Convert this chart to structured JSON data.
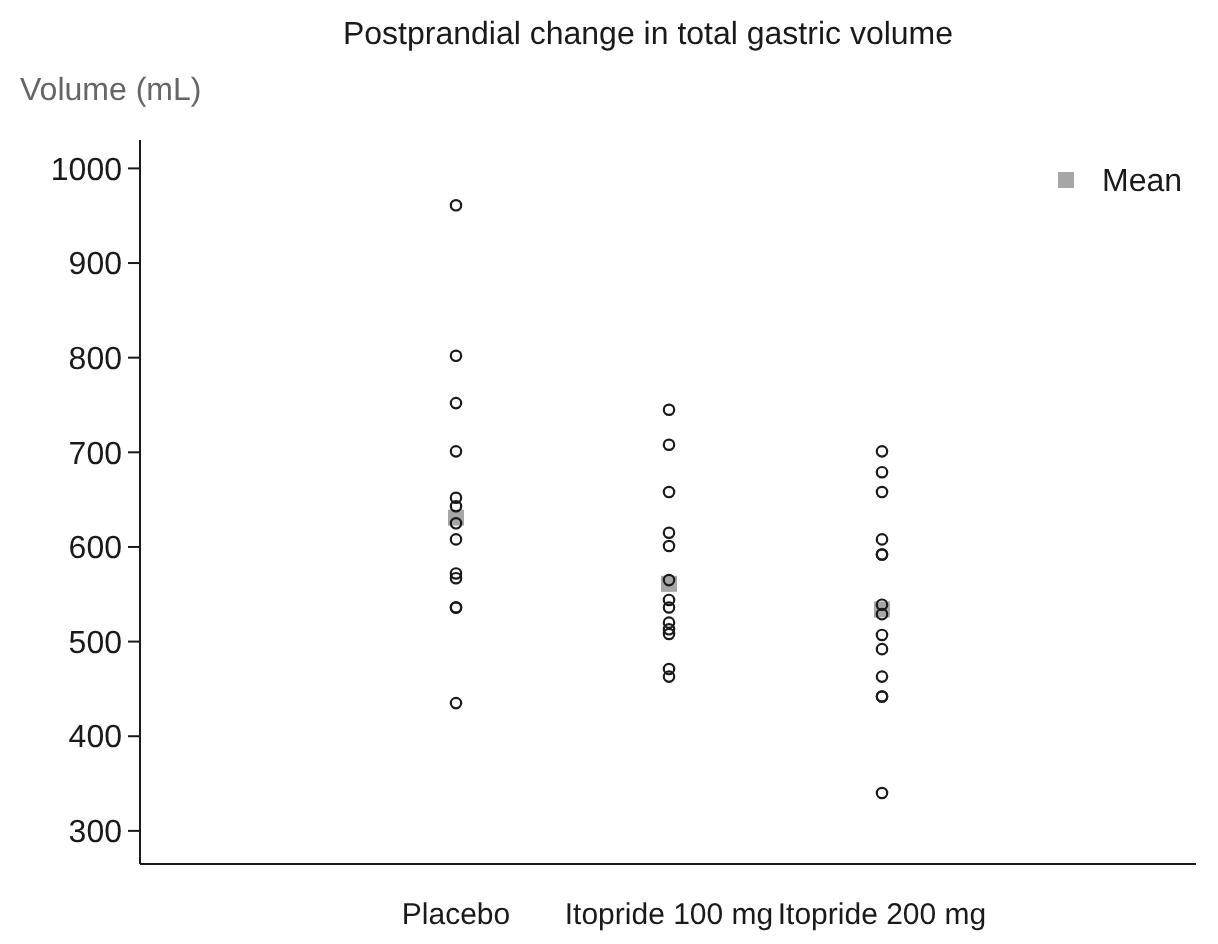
{
  "chart_data": {
    "type": "scatter",
    "title": "Postprandial change in total gastric volume",
    "ylabel": "Volume (mL)",
    "categories": [
      "Placebo",
      "Itopride 100 mg",
      "Itopride 200 mg"
    ],
    "ylim": [
      265,
      1030
    ],
    "yticks": [
      300,
      400,
      500,
      600,
      700,
      800,
      900,
      1000
    ],
    "grid": false,
    "legend": "top right",
    "series": [
      {
        "x": [
          "Placebo",
          "Placebo",
          "Placebo",
          "Placebo",
          "Placebo",
          "Placebo",
          "Placebo",
          "Placebo",
          "Placebo",
          "Placebo",
          "Placebo",
          "Placebo",
          "Placebo",
          "Itopride 100 mg",
          "Itopride 100 mg",
          "Itopride 100 mg",
          "Itopride 100 mg",
          "Itopride 100 mg",
          "Itopride 100 mg",
          "Itopride 100 mg",
          "Itopride 100 mg",
          "Itopride 100 mg",
          "Itopride 100 mg",
          "Itopride 100 mg",
          "Itopride 100 mg",
          "Itopride 100 mg",
          "Itopride 200 mg",
          "Itopride 200 mg",
          "Itopride 200 mg",
          "Itopride 200 mg",
          "Itopride 200 mg",
          "Itopride 200 mg",
          "Itopride 200 mg",
          "Itopride 200 mg",
          "Itopride 200 mg",
          "Itopride 200 mg",
          "Itopride 200 mg",
          "Itopride 200 mg",
          "Itopride 200 mg",
          "Itopride 200 mg"
        ],
        "color": "#1a1a1a",
        "marker": "circle",
        "values": [
          961,
          802,
          752,
          701,
          652,
          643,
          625,
          608,
          572,
          567,
          536,
          536,
          435,
          745,
          708,
          658,
          615,
          601,
          565,
          544,
          536,
          520,
          513,
          508,
          471,
          463,
          701,
          679,
          658,
          608,
          592,
          592,
          539,
          529,
          507,
          492,
          463,
          442,
          442,
          340
        ]
      },
      {
        "name": "Mean",
        "type": "scatter",
        "marker": "square",
        "color": "#a6a6a6",
        "x": [
          "Placebo",
          "Itopride 100 mg",
          "Itopride 200 mg"
        ],
        "values": [
          631,
          561,
          534
        ]
      }
    ]
  }
}
